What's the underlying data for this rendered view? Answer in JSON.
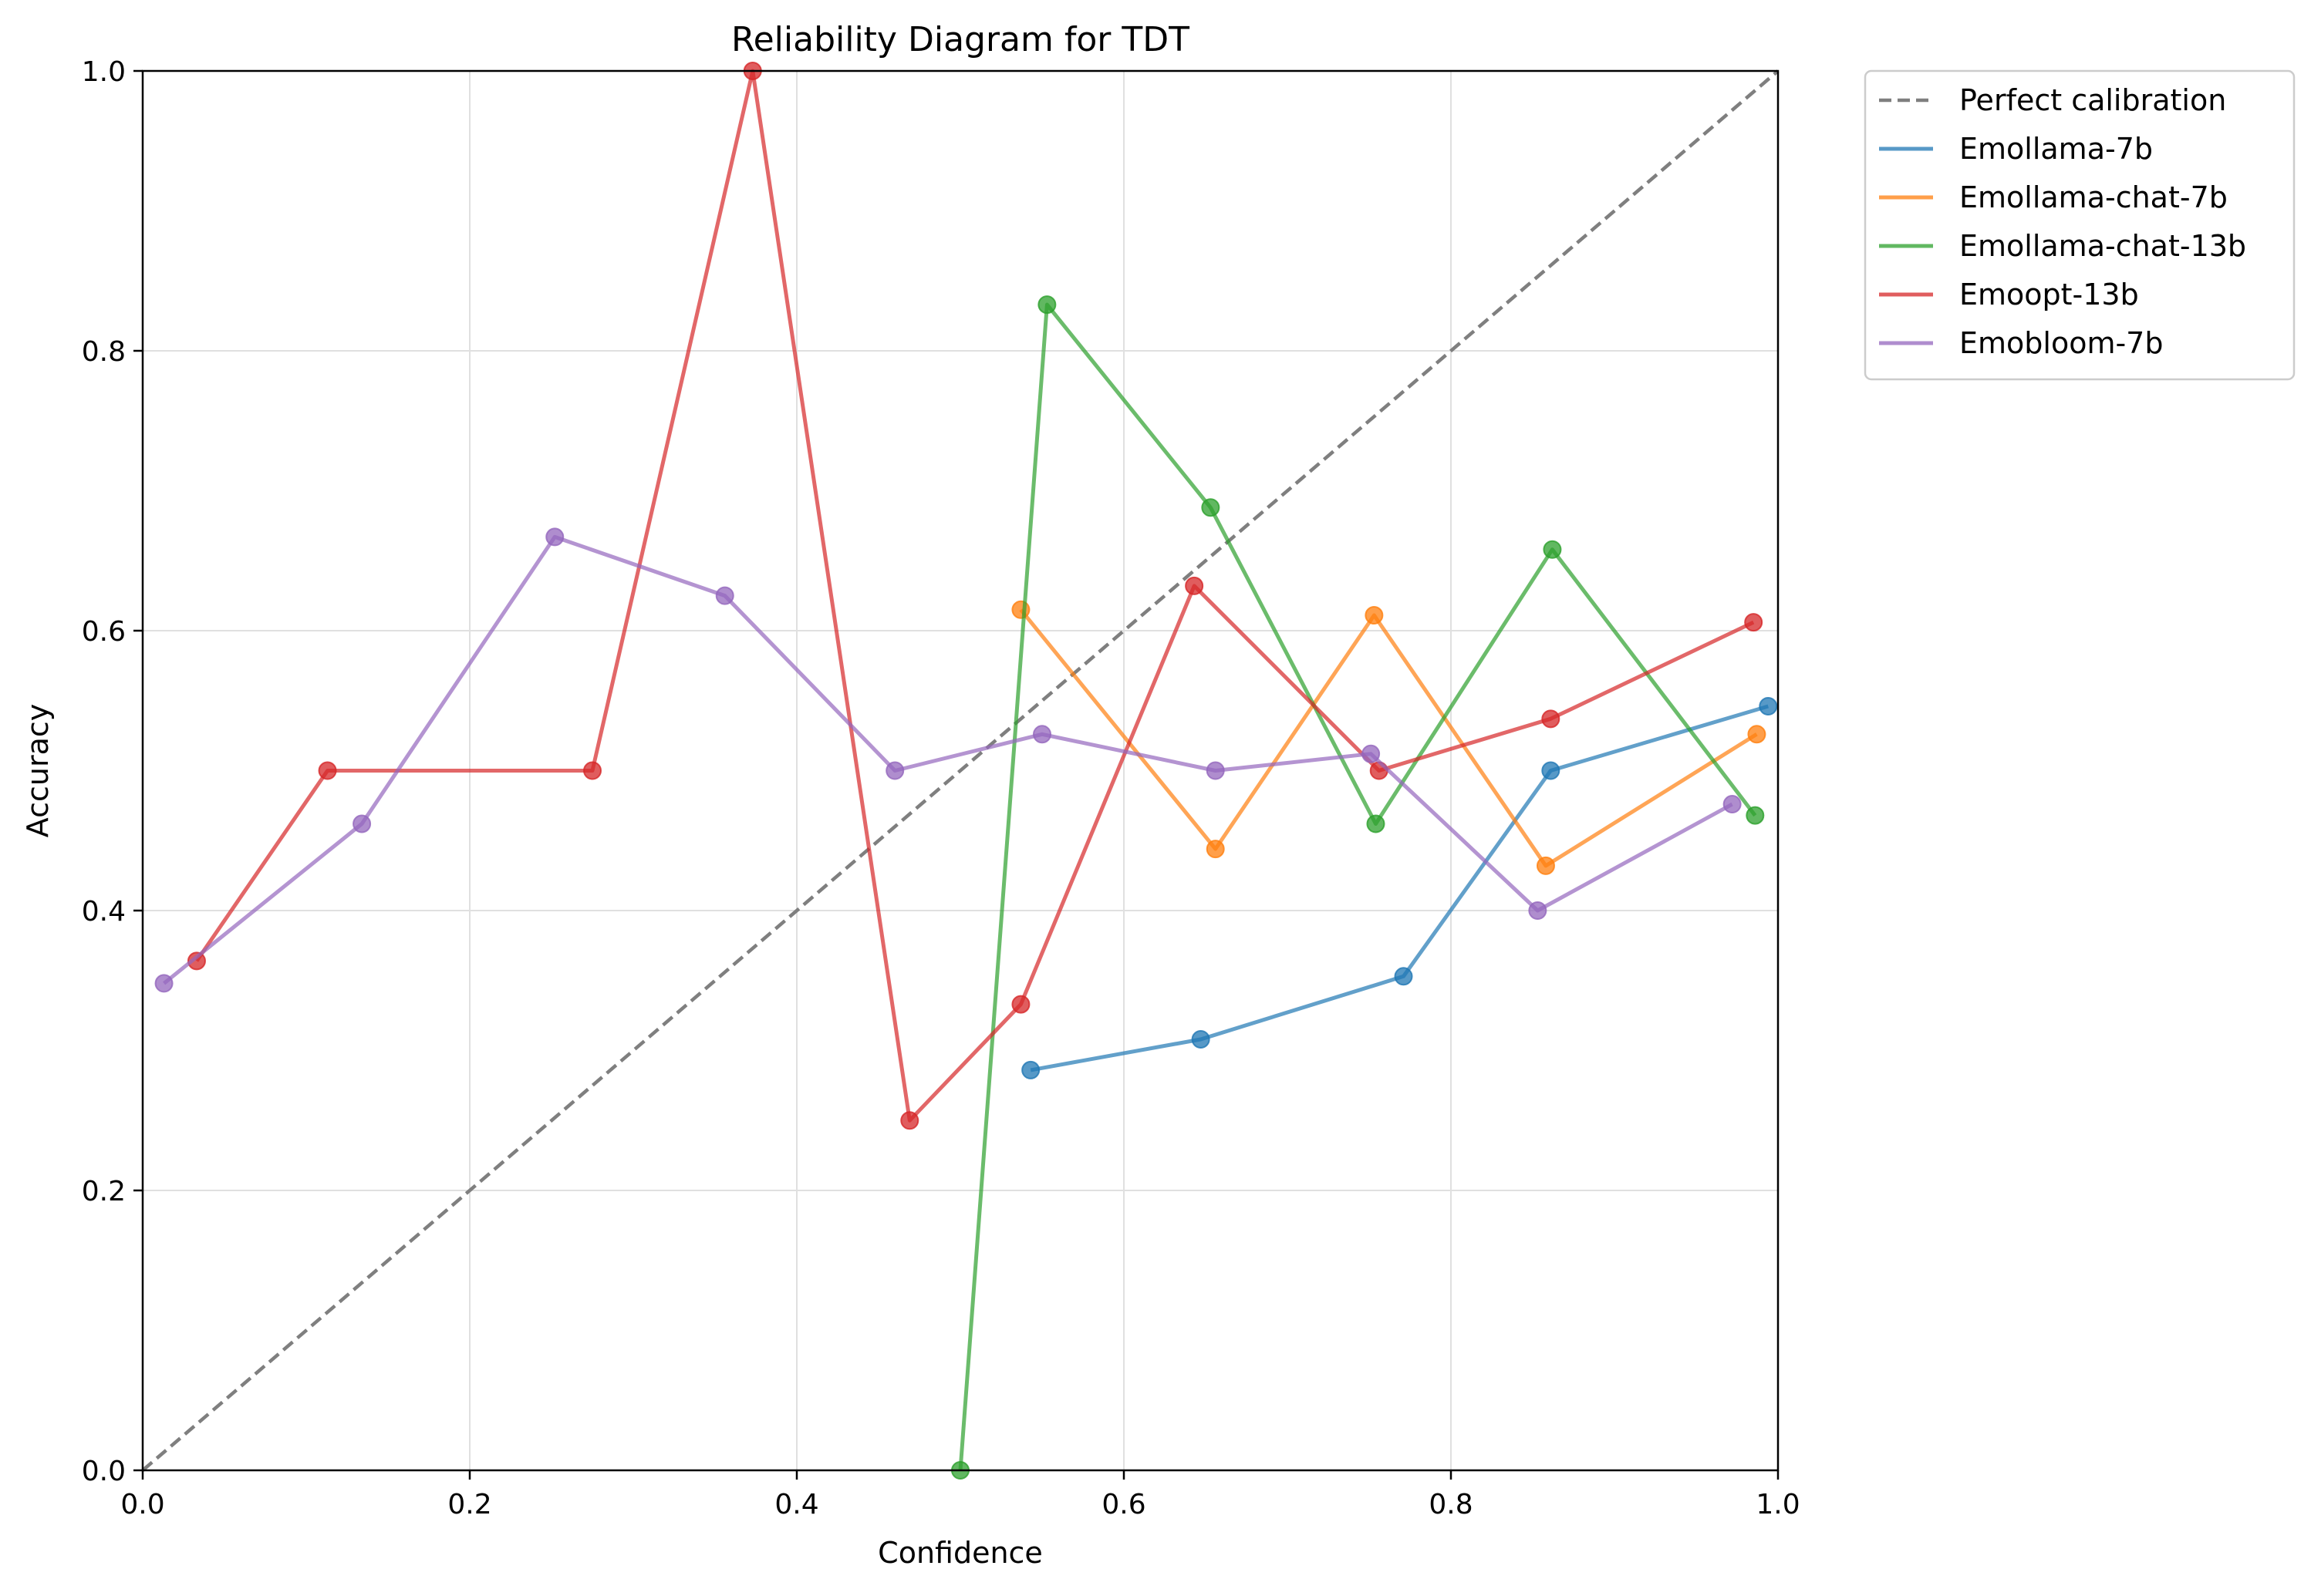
{
  "chart_data": {
    "type": "line",
    "title": "Reliability Diagram for TDT",
    "xlabel": "Confidence",
    "ylabel": "Accuracy",
    "xlim": [
      0.0,
      1.0
    ],
    "ylim": [
      0.0,
      1.0
    ],
    "grid": true,
    "legend_position": "outside top-right",
    "x_ticks": [
      "0.0",
      "0.2",
      "0.4",
      "0.6",
      "0.8",
      "1.0"
    ],
    "y_ticks": [
      "0.0",
      "0.2",
      "0.4",
      "0.6",
      "0.8",
      "1.0"
    ],
    "reference_line": {
      "name": "Perfect calibration",
      "x": [
        0.0,
        1.0
      ],
      "y": [
        0.0,
        1.0
      ],
      "color": "#7f7f7f",
      "style": "dashed"
    },
    "series": [
      {
        "name": "Emollama-7b",
        "color": "#1f77b4",
        "x": [
          0.543,
          0.647,
          0.771,
          0.861,
          0.994
        ],
        "y": [
          0.286,
          0.308,
          0.353,
          0.5,
          0.546
        ]
      },
      {
        "name": "Emollama-chat-7b",
        "color": "#ff7f0e",
        "x": [
          0.537,
          0.656,
          0.753,
          0.858,
          0.987
        ],
        "y": [
          0.615,
          0.444,
          0.611,
          0.432,
          0.526
        ]
      },
      {
        "name": "Emollama-chat-13b",
        "color": "#2ca02c",
        "x": [
          0.5,
          0.553,
          0.653,
          0.754,
          0.862,
          0.986
        ],
        "y": [
          0.0,
          0.833,
          0.688,
          0.462,
          0.658,
          0.468
        ]
      },
      {
        "name": "Emoopt-13b",
        "color": "#d62728",
        "x": [
          0.033,
          0.113,
          0.275,
          0.373,
          0.469,
          0.537,
          0.643,
          0.756,
          0.861,
          0.985
        ],
        "y": [
          0.364,
          0.5,
          0.5,
          1.0,
          0.25,
          0.333,
          0.632,
          0.5,
          0.537,
          0.606
        ]
      },
      {
        "name": "Emobloom-7b",
        "color": "#9467bd",
        "x": [
          0.013,
          0.134,
          0.252,
          0.356,
          0.46,
          0.55,
          0.656,
          0.751,
          0.853,
          0.972
        ],
        "y": [
          0.348,
          0.462,
          0.667,
          0.625,
          0.5,
          0.526,
          0.5,
          0.512,
          0.4,
          0.476
        ]
      }
    ]
  }
}
